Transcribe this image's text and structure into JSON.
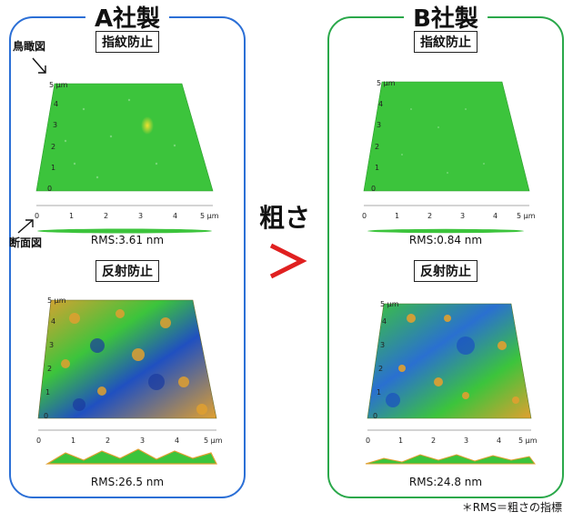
{
  "panel_a": {
    "title": "A社製",
    "fingerprint_label": "指紋防止",
    "antireflection_label": "反射防止",
    "rms_top": "RMS:3.61 nm",
    "rms_bottom": "RMS:26.5 nm"
  },
  "panel_b": {
    "title": "B社製",
    "fingerprint_label": "指紋防止",
    "antireflection_label": "反射防止",
    "rms_top": "RMS:0.84 nm",
    "rms_bottom": "RMS:24.8 nm"
  },
  "annotations": {
    "birdseye": "鳥瞰図",
    "cross_section": "断面図"
  },
  "comparison": {
    "roughness_label": "粗さ",
    "sign": ">"
  },
  "footnote": "＊RMS＝粗さの指標",
  "axis": {
    "x_ticks": [
      "0",
      "1",
      "2",
      "3",
      "4",
      "5 μm"
    ],
    "y_ticks": [
      "0",
      "1",
      "2",
      "3",
      "4",
      "5 μm"
    ]
  },
  "colors": {
    "panel_a_border": "#2b6fd6",
    "panel_b_border": "#2aa84a",
    "surface_green": "#3cc43c",
    "sign_red": "#e02020"
  }
}
